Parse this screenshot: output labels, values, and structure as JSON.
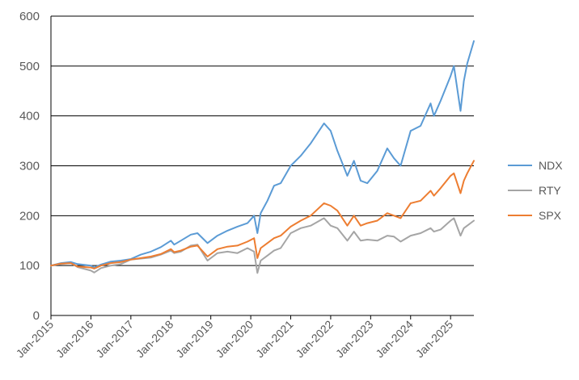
{
  "chart_data": {
    "type": "line",
    "title": "",
    "xlabel": "",
    "ylabel": "",
    "ylim": [
      0,
      600
    ],
    "yticks": [
      0,
      100,
      200,
      300,
      400,
      500,
      600
    ],
    "xlim": [
      "2015-01",
      "2025-08"
    ],
    "xtick_labels": [
      "Jan-2015",
      "Jan-2016",
      "Jan-2017",
      "Jan-2018",
      "Jan-2019",
      "Jan-2020",
      "Jan-2021",
      "Jan-2022",
      "Jan-2023",
      "Jan-2024",
      "Jan-2025"
    ],
    "grid": "horizontal major gridlines",
    "legend_position": "right",
    "x": [
      "2015-01",
      "2015-04",
      "2015-07",
      "2015-09",
      "2016-01",
      "2016-02",
      "2016-04",
      "2016-07",
      "2016-10",
      "2017-01",
      "2017-04",
      "2017-07",
      "2017-10",
      "2018-01",
      "2018-02",
      "2018-04",
      "2018-07",
      "2018-09",
      "2018-12",
      "2019-03",
      "2019-06",
      "2019-09",
      "2019-12",
      "2020-02",
      "2020-03",
      "2020-04",
      "2020-06",
      "2020-08",
      "2020-10",
      "2021-01",
      "2021-04",
      "2021-07",
      "2021-11",
      "2022-01",
      "2022-03",
      "2022-06",
      "2022-08",
      "2022-10",
      "2022-12",
      "2023-03",
      "2023-06",
      "2023-08",
      "2023-10",
      "2024-01",
      "2024-04",
      "2024-07",
      "2024-08",
      "2024-10",
      "2025-01",
      "2025-02",
      "2025-04",
      "2025-05",
      "2025-06",
      "2025-08"
    ],
    "series": [
      {
        "name": "NDX",
        "color": "#5b9bd5",
        "values": [
          100,
          105,
          107,
          103,
          100,
          96,
          102,
          108,
          110,
          113,
          122,
          128,
          137,
          150,
          142,
          150,
          162,
          165,
          145,
          160,
          170,
          178,
          185,
          200,
          165,
          205,
          230,
          260,
          265,
          300,
          320,
          345,
          385,
          370,
          330,
          280,
          310,
          270,
          265,
          290,
          335,
          315,
          300,
          370,
          380,
          425,
          400,
          430,
          480,
          500,
          410,
          470,
          505,
          550
        ]
      },
      {
        "name": "RTY",
        "color": "#a5a5a5",
        "values": [
          100,
          103,
          105,
          97,
          90,
          86,
          95,
          100,
          103,
          112,
          114,
          116,
          122,
          130,
          125,
          128,
          140,
          142,
          110,
          125,
          128,
          125,
          135,
          128,
          85,
          110,
          120,
          130,
          135,
          165,
          175,
          180,
          195,
          180,
          175,
          150,
          168,
          150,
          152,
          150,
          160,
          158,
          148,
          160,
          165,
          175,
          168,
          172,
          190,
          195,
          160,
          175,
          180,
          190
        ]
      },
      {
        "name": "SPX",
        "color": "#ed7d31",
        "values": [
          100,
          104,
          105,
          98,
          96,
          94,
          100,
          105,
          107,
          112,
          115,
          118,
          123,
          133,
          127,
          130,
          138,
          140,
          118,
          133,
          138,
          140,
          148,
          155,
          115,
          135,
          145,
          155,
          160,
          178,
          190,
          200,
          225,
          220,
          210,
          180,
          200,
          180,
          185,
          190,
          205,
          200,
          195,
          225,
          230,
          250,
          240,
          255,
          280,
          285,
          245,
          270,
          285,
          310
        ]
      }
    ]
  }
}
